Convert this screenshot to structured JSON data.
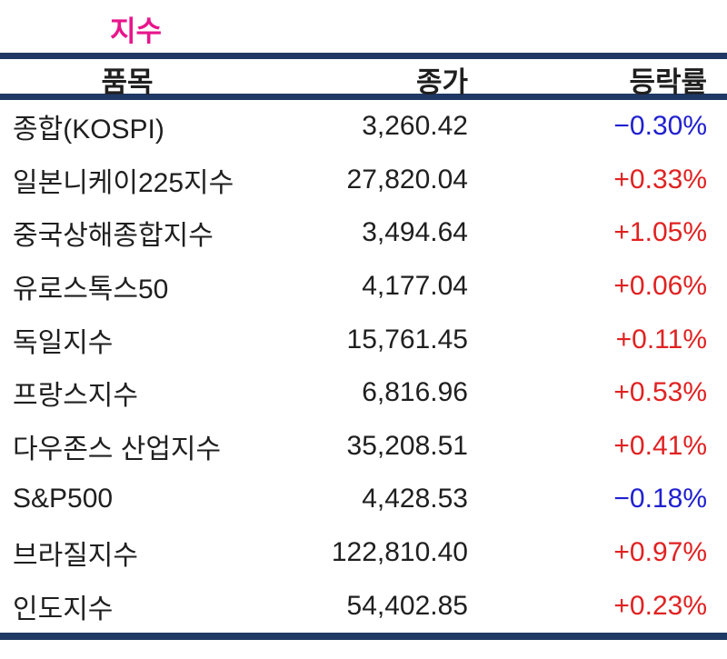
{
  "header": {
    "title": "지수"
  },
  "table": {
    "col_item": "품목",
    "col_close": "종가",
    "col_change": "등락률"
  },
  "colors": {
    "rule_navy": "#1F3864",
    "title_pink": "#E8158C",
    "up_red": "#E02222",
    "down_blue": "#2020D0",
    "text_black": "#1F1F1F"
  },
  "chart_data": {
    "type": "table",
    "title": "지수",
    "columns": [
      "품목",
      "종가",
      "등락률"
    ],
    "rows": [
      {
        "item": "종합(KOSPI)",
        "close": "3,260.42",
        "change": "−0.30%",
        "direction": "down"
      },
      {
        "item": "일본니케이225지수",
        "close": "27,820.04",
        "change": "+0.33%",
        "direction": "up"
      },
      {
        "item": "중국상해종합지수",
        "close": "3,494.64",
        "change": "+1.05%",
        "direction": "up"
      },
      {
        "item": "유로스톡스50",
        "close": "4,177.04",
        "change": "+0.06%",
        "direction": "up"
      },
      {
        "item": "독일지수",
        "close": "15,761.45",
        "change": "+0.11%",
        "direction": "up"
      },
      {
        "item": "프랑스지수",
        "close": "6,816.96",
        "change": "+0.53%",
        "direction": "up"
      },
      {
        "item": "다우존스 산업지수",
        "close": "35,208.51",
        "change": "+0.41%",
        "direction": "up"
      },
      {
        "item": "S&P500",
        "close": "4,428.53",
        "change": "−0.18%",
        "direction": "down"
      },
      {
        "item": "브라질지수",
        "close": "122,810.40",
        "change": "+0.97%",
        "direction": "up"
      },
      {
        "item": "인도지수",
        "close": "54,402.85",
        "change": "+0.23%",
        "direction": "up"
      }
    ],
    "layout": {
      "item_alignment": "left",
      "close_alignment": "right",
      "change_alignment": "right",
      "positive_color": "red",
      "negative_color": "blue"
    }
  }
}
